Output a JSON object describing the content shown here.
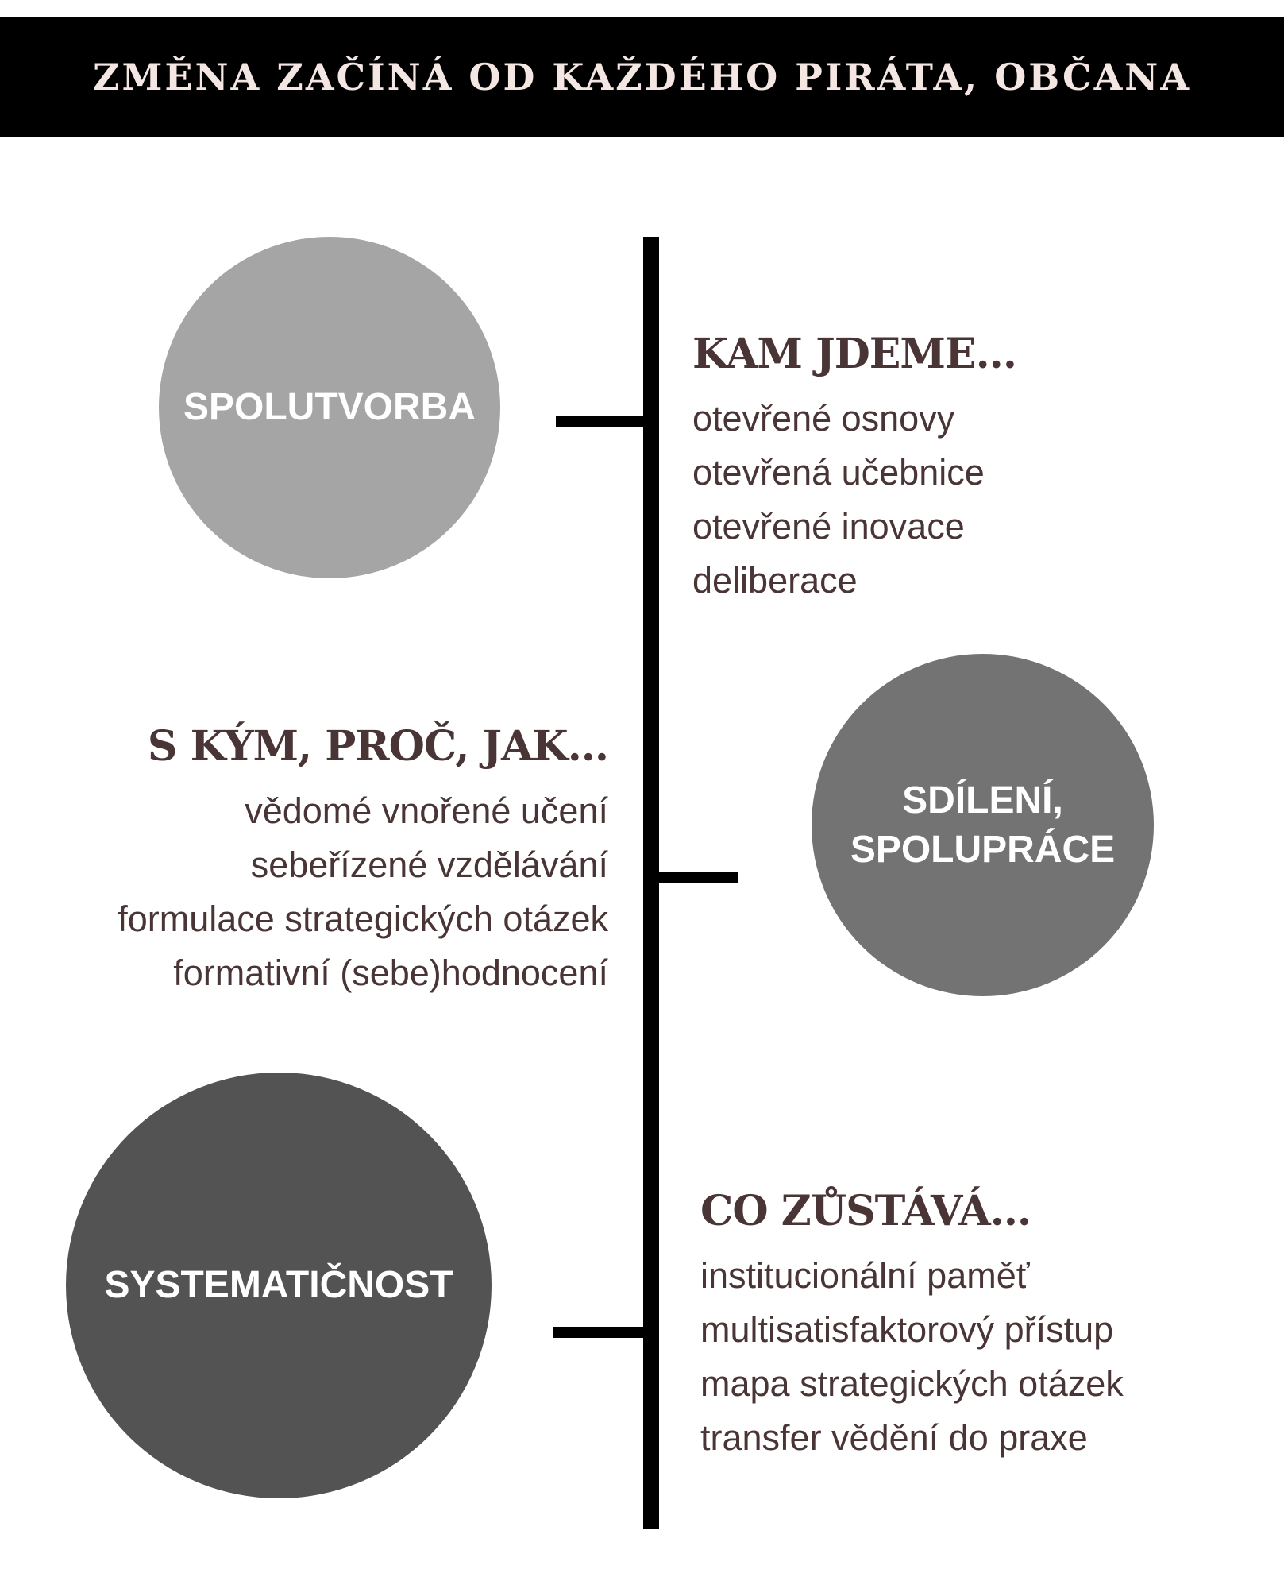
{
  "colors": {
    "banner_bg": "#000000",
    "banner_text": "#f4e6e2",
    "line": "#000000",
    "text": "#4a3536",
    "circle_1": "#a5a5a5",
    "circle_2": "#737373",
    "circle_3": "#535353",
    "circle_text": "#ffffff"
  },
  "title": "ZMĚNA ZAČÍNÁ OD KAŽDÉHO PIRÁTA, OBČANA",
  "circles": [
    {
      "label": "SPOLUTVORBA"
    },
    {
      "label": "SDÍLENÍ,\nSPOLUPRÁCE"
    },
    {
      "label": "SYSTEMATIČNOST"
    }
  ],
  "blocks": [
    {
      "heading": "KAM JDEME...",
      "items": [
        "otevřené  osnovy",
        "otevřená učebnice",
        "otevřené inovace",
        "deliberace"
      ]
    },
    {
      "heading": "S KÝM, PROČ, JAK...",
      "items": [
        "vědomé vnořené učení",
        "sebeřízené vzdělávání",
        "formulace strategických otázek",
        "formativní (sebe)hodnocení"
      ]
    },
    {
      "heading": "CO ZŮSTÁVÁ...",
      "items": [
        "institucionální paměť",
        "multisatisfaktorový přístup",
        "mapa strategických otázek",
        "transfer vědění do praxe"
      ]
    }
  ]
}
